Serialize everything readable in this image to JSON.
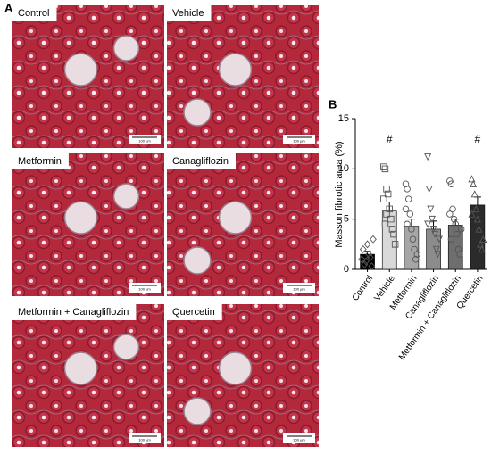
{
  "panel_a": {
    "label": "A",
    "images": [
      {
        "label": "Control",
        "scale_bar": "100 µm"
      },
      {
        "label": "Vehicle",
        "scale_bar": "100 µm"
      },
      {
        "label": "Metformin",
        "scale_bar": "100 µm"
      },
      {
        "label": "Canagliflozin",
        "scale_bar": "100 µm"
      },
      {
        "label": "Metformin + Canagliflozin",
        "scale_bar": "100 µm"
      },
      {
        "label": "Quercetin",
        "scale_bar": "100 µm"
      }
    ]
  },
  "chart_data": {
    "type": "bar",
    "panel_label": "B",
    "y_label": "Masson fibrotic area (%)",
    "categories": [
      "Control",
      "Vehicle",
      "Metformin",
      "Canagliflozin",
      "Metformin + Canagliflozin",
      "Quercetin"
    ],
    "values": [
      1.5,
      5.8,
      4.3,
      4.0,
      4.4,
      6.4
    ],
    "errors": [
      0.3,
      0.9,
      0.7,
      0.8,
      0.6,
      0.8
    ],
    "colors": [
      "#000000",
      "#d9d9d9",
      "#a6a6a6",
      "#8c8c8c",
      "#6e6e6e",
      "#2b2b2b"
    ],
    "markers": [
      "diamond",
      "square",
      "circle",
      "triangle-down",
      "circle",
      "triangle-up"
    ],
    "points": [
      [
        1.0,
        2.0,
        0.5,
        0.8,
        2.5,
        1.5,
        1.2,
        0.3,
        3.0
      ],
      [
        10.2,
        10.0,
        8.0,
        7.5,
        6.0,
        5.0,
        4.0,
        3.5,
        2.5,
        7.0,
        4.5,
        5.5
      ],
      [
        8.5,
        8.0,
        7.0,
        5.5,
        4.0,
        3.0,
        2.0,
        1.0,
        1.5,
        6.0,
        4.5
      ],
      [
        11.2,
        8.0,
        6.0,
        5.0,
        4.0,
        3.5,
        2.0,
        1.5,
        3.0,
        4.5
      ],
      [
        8.8,
        8.5,
        6.0,
        5.0,
        4.5,
        3.5,
        2.0,
        1.5,
        4.0,
        5.5,
        3.0
      ],
      [
        9.0,
        8.5,
        7.5,
        6.0,
        5.0,
        4.0,
        2.5,
        2.0,
        3.0,
        5.5
      ]
    ],
    "annotations": [
      null,
      "#",
      null,
      null,
      null,
      "#"
    ],
    "ylim": [
      0,
      15
    ],
    "yticks": [
      0,
      5,
      10,
      15
    ]
  }
}
